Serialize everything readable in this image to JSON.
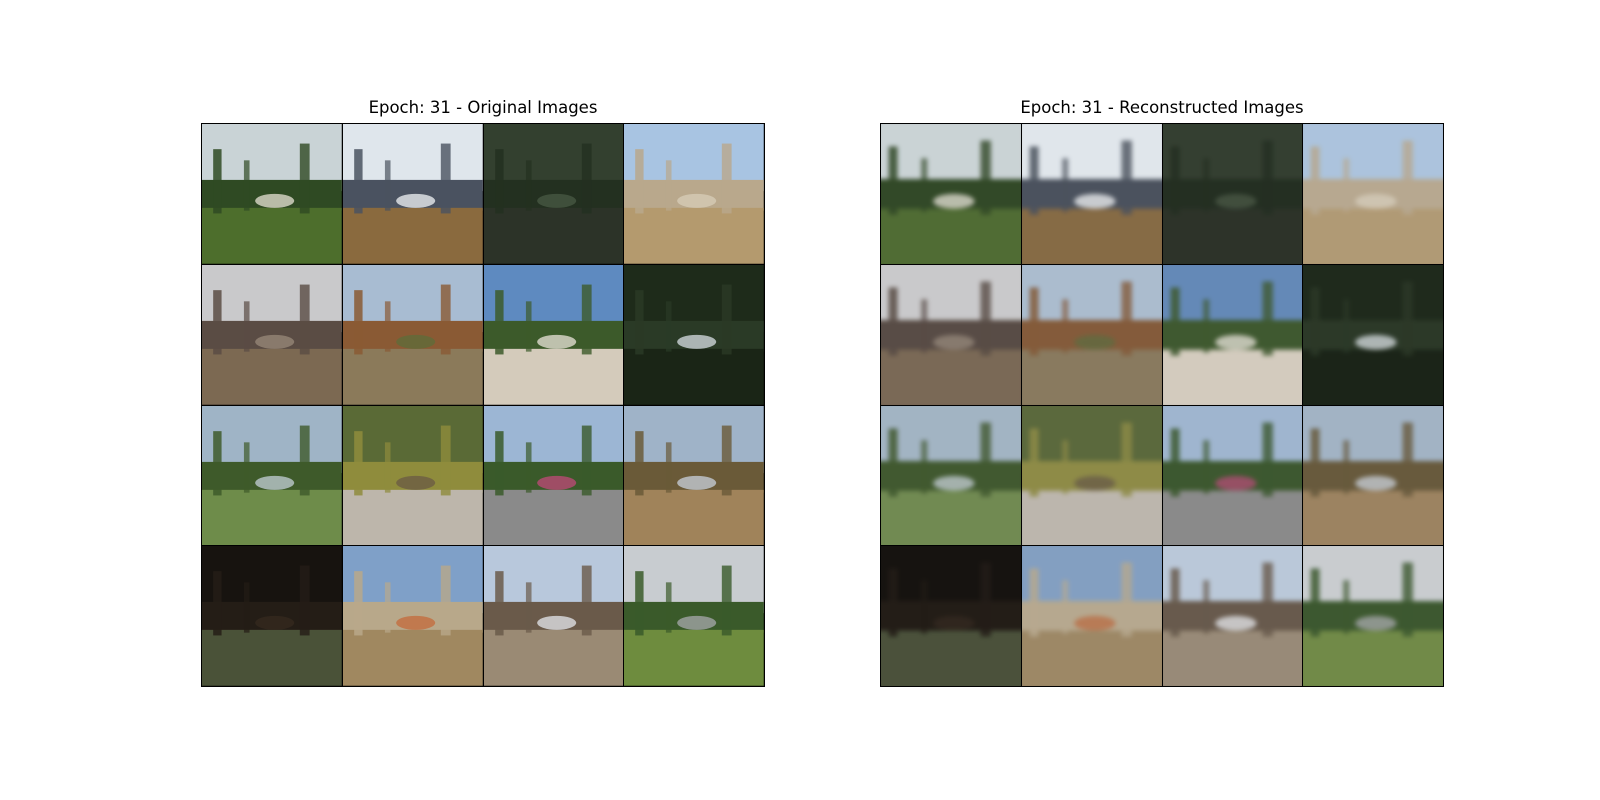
{
  "figure": {
    "left_title": "Epoch: 31 - Original Images",
    "right_title": "Epoch: 31 - Reconstructed Images"
  },
  "images": [
    {
      "scene": "house-trees",
      "sky": "#c9d3d6",
      "mid": "#2f4a23",
      "ground": "#4d6e2c",
      "accent": "#e8e3d6"
    },
    {
      "scene": "mountain-field",
      "sky": "#dfe6ec",
      "mid": "#4a5260",
      "ground": "#8a6a3e",
      "accent": "#f2f4f6"
    },
    {
      "scene": "dense-forest",
      "sky": "#33402f",
      "mid": "#233020",
      "ground": "#2c3328",
      "accent": "#4a5a44"
    },
    {
      "scene": "bare-trees",
      "sky": "#a8c4e2",
      "mid": "#b9a88c",
      "ground": "#b49a6e",
      "accent": "#d8cdb8"
    },
    {
      "scene": "overcast-buildings",
      "sky": "#c9c9cb",
      "mid": "#5a4c44",
      "ground": "#7c6952",
      "accent": "#9a8a7a"
    },
    {
      "scene": "dirt-hill",
      "sky": "#a8bcd2",
      "mid": "#8a5a34",
      "ground": "#8b7a5a",
      "accent": "#5c6e3a"
    },
    {
      "scene": "open-lot",
      "sky": "#5e8ac0",
      "mid": "#3c5a2a",
      "ground": "#d4cbbb",
      "accent": "#e9e4da"
    },
    {
      "scene": "tree-canopy",
      "sky": "#1e2b1a",
      "mid": "#2a3a26",
      "ground": "#1a2516",
      "accent": "#d8dfe4"
    },
    {
      "scene": "meadow",
      "sky": "#9fb4c6",
      "mid": "#3e5a2a",
      "ground": "#6e8c4a",
      "accent": "#c4d0d8"
    },
    {
      "scene": "creek-shrubs",
      "sky": "#5a6a36",
      "mid": "#8f8c3c",
      "ground": "#bdb6ab",
      "accent": "#6a5a44"
    },
    {
      "scene": "palm-yard",
      "sky": "#9cb6d4",
      "mid": "#3a5a2a",
      "ground": "#8a8a8a",
      "accent": "#c24a7a"
    },
    {
      "scene": "desert-scrub",
      "sky": "#9fb3c8",
      "mid": "#6a5a38",
      "ground": "#a0835a",
      "accent": "#c9d2dc"
    },
    {
      "scene": "dark-woods",
      "sky": "#17130f",
      "mid": "#241d16",
      "ground": "#4a5238",
      "accent": "#35291f"
    },
    {
      "scene": "birch-slope",
      "sky": "#7fa0c8",
      "mid": "#b8a88a",
      "ground": "#a08860",
      "accent": "#c46a3a"
    },
    {
      "scene": "bare-forest-path",
      "sky": "#b8c8dc",
      "mid": "#6a5a4a",
      "ground": "#9a8a74",
      "accent": "#e6e8ee"
    },
    {
      "scene": "parking-lot",
      "sky": "#c8ccd0",
      "mid": "#3a5a2a",
      "ground": "#6e8c3e",
      "accent": "#a8aaae"
    }
  ]
}
